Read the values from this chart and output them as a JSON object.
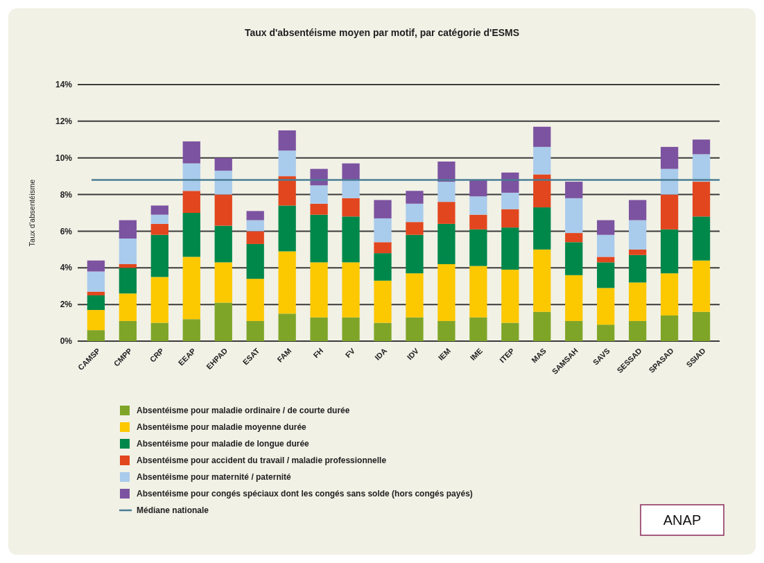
{
  "chart_data": {
    "type": "bar",
    "title": "Taux d'absentéisme moyen par motif, par catégorie d'ESMS",
    "ylabel": "Taux d'absentéisme",
    "stacked": true,
    "grid": "y",
    "legend": "bottom",
    "categories": [
      "CAMSP",
      "CMPP",
      "CRP",
      "EEAP",
      "EHPAD",
      "ESAT",
      "FAM",
      "FH",
      "FV",
      "IDA",
      "IDV",
      "IEM",
      "IME",
      "ITEP",
      "MAS",
      "SAMSAH",
      "SAVS",
      "SESSAD",
      "SPASAD",
      "SSIAD"
    ],
    "ylim": [
      0,
      14
    ],
    "yticks": [
      {
        "value": 0,
        "label": "0%"
      },
      {
        "value": 2,
        "label": "2%"
      },
      {
        "value": 4,
        "label": "4%"
      },
      {
        "value": 6,
        "label": "6%"
      },
      {
        "value": 8,
        "label": "8%"
      },
      {
        "value": 10,
        "label": "10%"
      },
      {
        "value": 12,
        "label": "12%"
      },
      {
        "value": 14,
        "label": "14%"
      }
    ],
    "series": [
      {
        "name": "Absentéisme pour maladie ordinaire / de courte durée",
        "color": "#7fa528",
        "values": [
          0.6,
          1.1,
          1.0,
          1.2,
          2.1,
          1.1,
          1.5,
          1.3,
          1.3,
          1.0,
          1.3,
          1.1,
          1.3,
          1.0,
          1.6,
          1.1,
          0.9,
          1.1,
          1.4,
          1.6
        ]
      },
      {
        "name": "Absentéisme pour maladie moyenne durée",
        "color": "#fcc800",
        "values": [
          1.1,
          1.5,
          2.5,
          3.4,
          2.2,
          2.3,
          3.4,
          3.0,
          3.0,
          2.3,
          2.4,
          3.1,
          2.8,
          2.9,
          3.4,
          2.5,
          2.0,
          2.1,
          2.3,
          2.8
        ]
      },
      {
        "name": "Absentéisme pour maladie de longue durée",
        "color": "#00884a",
        "values": [
          0.8,
          1.4,
          2.3,
          2.4,
          2.0,
          1.9,
          2.5,
          2.6,
          2.5,
          1.5,
          2.1,
          2.2,
          2.0,
          2.3,
          2.3,
          1.8,
          1.4,
          1.5,
          2.4,
          2.4
        ]
      },
      {
        "name": "Absentéisme pour accident du travail / maladie professionnelle",
        "color": "#e2461e",
        "values": [
          0.2,
          0.2,
          0.6,
          1.2,
          1.7,
          0.7,
          1.6,
          0.6,
          1.0,
          0.6,
          0.7,
          1.2,
          0.8,
          1.0,
          1.8,
          0.5,
          0.3,
          0.3,
          1.9,
          1.9
        ]
      },
      {
        "name": "Absentéisme pour maternité / paternité",
        "color": "#a9cbec",
        "values": [
          1.1,
          1.4,
          0.5,
          1.5,
          1.3,
          0.6,
          1.4,
          1.0,
          1.0,
          1.3,
          1.0,
          1.1,
          1.0,
          0.9,
          1.5,
          1.9,
          1.2,
          1.6,
          1.4,
          1.5
        ]
      },
      {
        "name": "Absentéisme pour congés spéciaux dont les congés sans solde (hors congés payés)",
        "color": "#7c53a0",
        "values": [
          0.6,
          1.0,
          0.5,
          1.2,
          0.7,
          0.5,
          1.1,
          0.9,
          0.9,
          1.0,
          0.7,
          1.1,
          0.9,
          1.1,
          1.1,
          0.9,
          0.8,
          1.1,
          1.2,
          0.8
        ]
      }
    ],
    "ref_lines": [
      {
        "axis": "y",
        "value": 8.8,
        "label": "Médiane nationale",
        "color": "#4a7d94"
      }
    ],
    "annotations": [
      "ANAP"
    ]
  }
}
